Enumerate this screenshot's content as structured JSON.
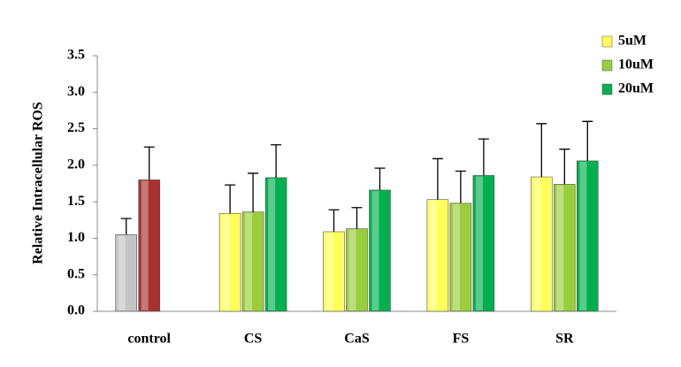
{
  "chart_data": {
    "type": "bar",
    "y_label": "Relative Intracellular ROS",
    "categories": [
      "control",
      "CS",
      "CaS",
      "FS",
      "SR"
    ],
    "series": [
      {
        "color": "#c4c4c4",
        "values": [
          1.05,
          null,
          null,
          null,
          null
        ],
        "error": [
          0.22,
          null,
          null,
          null,
          null
        ]
      },
      {
        "color": "#a8322f",
        "values": [
          1.8,
          null,
          null,
          null,
          null
        ],
        "error": [
          0.45,
          null,
          null,
          null,
          null
        ]
      },
      {
        "name": "5uM",
        "color": "#ffff5a",
        "values": [
          null,
          1.34,
          1.09,
          1.53,
          1.84
        ],
        "error": [
          null,
          0.39,
          0.3,
          0.56,
          0.73
        ]
      },
      {
        "name": "10uM",
        "color": "#9acd3c",
        "values": [
          null,
          1.36,
          1.13,
          1.48,
          1.74
        ],
        "error": [
          null,
          0.53,
          0.29,
          0.44,
          0.48
        ]
      },
      {
        "name": "20uM",
        "color": "#00b04e",
        "values": [
          null,
          1.83,
          1.66,
          1.86,
          2.06
        ],
        "error": [
          null,
          0.45,
          0.3,
          0.5,
          0.54
        ]
      }
    ],
    "ylim": [
      0,
      3.5
    ],
    "yticks": [
      {
        "value": 0,
        "label": "0.0"
      },
      0.5,
      {
        "value": 1,
        "label": "1.0"
      },
      1.5,
      {
        "value": 2,
        "label": "2.0"
      },
      2.5,
      {
        "value": 3,
        "label": "3.0"
      },
      3.5
    ],
    "legend": "top-right"
  }
}
